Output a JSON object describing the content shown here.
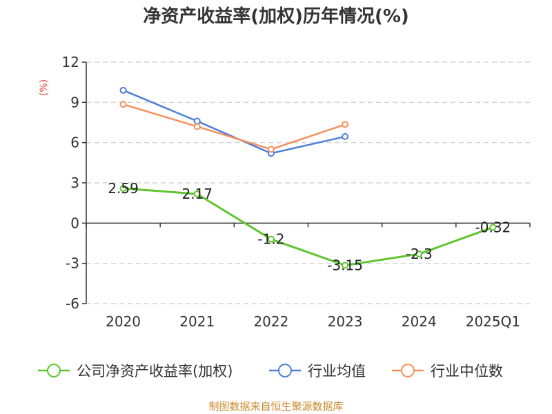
{
  "chart_data": {
    "type": "line",
    "title": "净资产收益率(加权)历年情况(%)",
    "unit": "(%)",
    "categories": [
      "2020",
      "2021",
      "2022",
      "2023",
      "2024",
      "2025Q1"
    ],
    "ylim": [
      -6,
      12
    ],
    "yticks": [
      "12",
      "9",
      "6",
      "3",
      "0",
      "-3",
      "-6"
    ],
    "grid": true,
    "legend_position": "bottom",
    "series": [
      {
        "name": "公司净资产收益率(加权)",
        "color": "#5ec52e",
        "values": [
          2.59,
          2.17,
          -1.2,
          -3.15,
          -2.3,
          -0.32
        ],
        "labels": [
          "2.59",
          "2.17",
          "-1.2",
          "-3.15",
          "-2.3",
          "-0.32"
        ]
      },
      {
        "name": "行业均值",
        "color": "#4f7fd9",
        "values": [
          9.9,
          7.6,
          5.2,
          6.45,
          null,
          null
        ]
      },
      {
        "name": "行业中位数",
        "color": "#f5905c",
        "values": [
          8.85,
          7.2,
          5.5,
          7.35,
          null,
          null
        ]
      }
    ]
  },
  "source": "制图数据来自恒生聚源数据库",
  "colors": {
    "unit": "#e0463a",
    "source": "#c98a2b",
    "axis": "#333333",
    "grid": "#cccccc"
  }
}
